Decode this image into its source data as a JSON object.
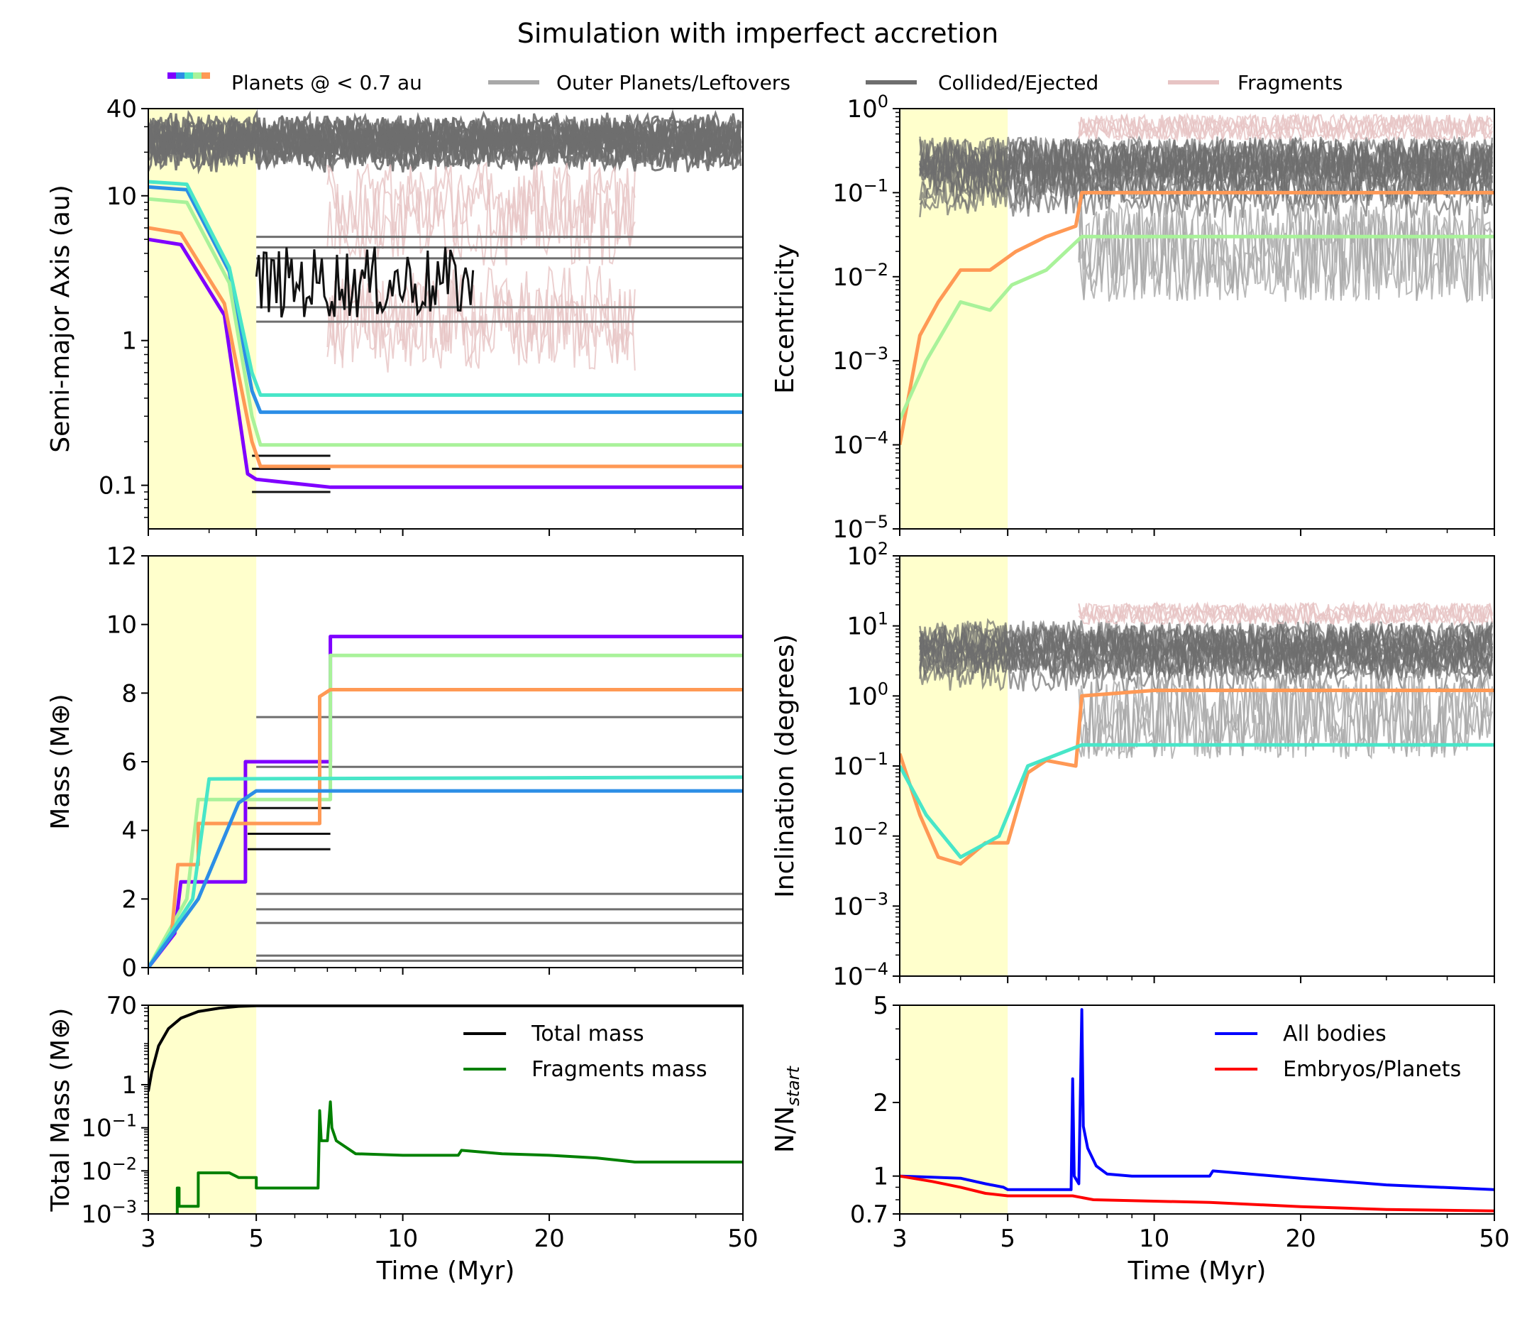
{
  "title": "Simulation with imperfect accretion",
  "colors": {
    "shade": "#ffffcc",
    "outer": "#a9a9a9",
    "collided": "#6e6e6e",
    "fragments": "#e7c4c4",
    "planet_purple": "#7f00ff",
    "planet_blue": "#2c8ee6",
    "planet_cyan": "#48e6c8",
    "planet_lightgreen": "#a9f29a",
    "planet_orange": "#ff9955",
    "total_mass": "#000000",
    "fragments_mass": "#008000",
    "all_bodies": "#0000ff",
    "embryos": "#ff0000",
    "ejected_black": "#111111"
  },
  "legend": {
    "planets": "Planets @ < 0.7 au",
    "outer": "Outer Planets/Leftovers",
    "collided": "Collided/Ejected",
    "fragments": "Fragments"
  },
  "chart_data": [
    {
      "id": "semimajor",
      "type": "line",
      "ylabel": "Semi-major Axis (au)",
      "xlabel": "",
      "xscale": "log",
      "yscale": "log",
      "xlim": [
        3,
        50
      ],
      "ylim": [
        0.05,
        40
      ],
      "shaded_x": [
        3,
        5
      ],
      "yticks": [
        {
          "v": 40,
          "label": "40"
        },
        {
          "v": 10,
          "label": "10"
        },
        {
          "v": 1,
          "label": "1"
        },
        {
          "v": 0.1,
          "label": "0.1"
        }
      ],
      "series": [
        {
          "name": "purple",
          "x": [
            3,
            3.5,
            4.3,
            4.8,
            5,
            7.1,
            50
          ],
          "values": [
            5.0,
            4.6,
            1.5,
            0.12,
            0.11,
            0.097,
            0.097
          ]
        },
        {
          "name": "blue",
          "x": [
            3,
            3.6,
            4.4,
            4.9,
            5.1,
            50
          ],
          "values": [
            11.5,
            11.0,
            3.0,
            0.45,
            0.32,
            0.32
          ]
        },
        {
          "name": "cyan",
          "x": [
            3,
            3.6,
            4.4,
            4.9,
            5.1,
            50
          ],
          "values": [
            12.5,
            12.0,
            3.2,
            0.6,
            0.42,
            0.42
          ]
        },
        {
          "name": "lightgreen",
          "x": [
            3,
            3.6,
            4.4,
            4.9,
            5.1,
            50
          ],
          "values": [
            9.5,
            9.0,
            2.5,
            0.3,
            0.19,
            0.19
          ]
        },
        {
          "name": "orange",
          "x": [
            3,
            3.5,
            4.3,
            4.9,
            5.1,
            50
          ],
          "values": [
            6.0,
            5.5,
            1.8,
            0.2,
            0.135,
            0.135
          ]
        }
      ]
    },
    {
      "id": "eccentricity",
      "type": "line",
      "ylabel": "Eccentricity",
      "xlabel": "",
      "xscale": "log",
      "yscale": "log",
      "xlim": [
        3,
        50
      ],
      "ylim": [
        1e-05,
        1
      ],
      "shaded_x": [
        3,
        5
      ],
      "yticks": [
        {
          "v": 1,
          "b": "10",
          "e": "0"
        },
        {
          "v": 0.1,
          "b": "10",
          "e": "−1"
        },
        {
          "v": 0.01,
          "b": "10",
          "e": "−2"
        },
        {
          "v": 0.001,
          "b": "10",
          "e": "−3"
        },
        {
          "v": 0.0001,
          "b": "10",
          "e": "−4"
        },
        {
          "v": 1e-05,
          "b": "10",
          "e": "−5"
        }
      ],
      "series": [
        {
          "name": "orange",
          "x": [
            3,
            3.3,
            3.6,
            4.0,
            4.6,
            5.2,
            6.0,
            6.9,
            7.1,
            10,
            20,
            50
          ],
          "values": [
            0.0001,
            0.002,
            0.005,
            0.012,
            0.012,
            0.02,
            0.03,
            0.04,
            0.1,
            0.1,
            0.1,
            0.1
          ]
        },
        {
          "name": "lightgreen",
          "x": [
            3,
            3.4,
            4.0,
            4.6,
            5.1,
            6.0,
            7.1,
            10,
            20,
            50
          ],
          "values": [
            0.0002,
            0.001,
            0.005,
            0.004,
            0.008,
            0.012,
            0.03,
            0.03,
            0.03,
            0.03
          ]
        }
      ]
    },
    {
      "id": "mass",
      "type": "line",
      "ylabel": "Mass (M⊕)",
      "xlabel": "",
      "xscale": "log",
      "yscale": "linear",
      "xlim": [
        3,
        50
      ],
      "ylim": [
        0,
        12
      ],
      "shaded_x": [
        3,
        5
      ],
      "yticks": [
        {
          "v": 0,
          "label": "0"
        },
        {
          "v": 2,
          "label": "2"
        },
        {
          "v": 4,
          "label": "4"
        },
        {
          "v": 6,
          "label": "6"
        },
        {
          "v": 8,
          "label": "8"
        },
        {
          "v": 10,
          "label": "10"
        },
        {
          "v": 12,
          "label": "12"
        }
      ],
      "series": [
        {
          "name": "purple",
          "x": [
            3,
            3.4,
            3.5,
            4.75,
            4.75,
            6.75,
            7.1,
            7.1,
            50
          ],
          "values": [
            0,
            1.0,
            2.5,
            2.5,
            6.0,
            6.0,
            6.0,
            9.65,
            9.65
          ]
        },
        {
          "name": "lightgreen",
          "x": [
            3,
            3.6,
            3.8,
            5.0,
            7.1,
            7.1,
            50
          ],
          "values": [
            0,
            2.0,
            4.9,
            4.9,
            4.9,
            9.1,
            9.1
          ]
        },
        {
          "name": "orange",
          "x": [
            3,
            3.35,
            3.45,
            3.8,
            3.8,
            6.75,
            6.75,
            7.1,
            50
          ],
          "values": [
            0,
            1.0,
            3.0,
            3.0,
            4.2,
            4.2,
            7.9,
            8.1,
            8.1
          ]
        },
        {
          "name": "cyan",
          "x": [
            3,
            3.7,
            4.0,
            50
          ],
          "values": [
            0,
            2.0,
            5.5,
            5.55
          ]
        },
        {
          "name": "blue",
          "x": [
            3,
            3.8,
            4.6,
            5.0,
            50
          ],
          "values": [
            0,
            2.0,
            4.8,
            5.15,
            5.15
          ]
        }
      ]
    },
    {
      "id": "inclination",
      "type": "line",
      "ylabel": "Inclination (degrees)",
      "xlabel": "",
      "xscale": "log",
      "yscale": "log",
      "xlim": [
        3,
        50
      ],
      "ylim": [
        0.0001,
        100
      ],
      "shaded_x": [
        3,
        5
      ],
      "yticks": [
        {
          "v": 100,
          "b": "10",
          "e": "2"
        },
        {
          "v": 10,
          "b": "10",
          "e": "1"
        },
        {
          "v": 1,
          "b": "10",
          "e": "0"
        },
        {
          "v": 0.1,
          "b": "10",
          "e": "−1"
        },
        {
          "v": 0.01,
          "b": "10",
          "e": "−2"
        },
        {
          "v": 0.001,
          "b": "10",
          "e": "−3"
        },
        {
          "v": 0.0001,
          "b": "10",
          "e": "−4"
        }
      ],
      "series": [
        {
          "name": "orange",
          "x": [
            3,
            3.3,
            3.6,
            4.0,
            4.5,
            5.0,
            5.5,
            6.0,
            6.9,
            7.1,
            10,
            20,
            50
          ],
          "values": [
            0.15,
            0.02,
            0.005,
            0.004,
            0.008,
            0.008,
            0.08,
            0.12,
            0.1,
            1.0,
            1.2,
            1.2,
            1.2
          ]
        },
        {
          "name": "cyan",
          "x": [
            3,
            3.4,
            4.0,
            4.8,
            5.5,
            7.1,
            10,
            20,
            50
          ],
          "values": [
            0.1,
            0.02,
            0.005,
            0.01,
            0.1,
            0.2,
            0.2,
            0.2,
            0.2
          ]
        }
      ]
    },
    {
      "id": "totalmass",
      "type": "line",
      "ylabel": "Total Mass (M⊕)",
      "xlabel": "Time (Myr)",
      "xscale": "log",
      "yscale": "log",
      "xlim": [
        3,
        50
      ],
      "ylim": [
        0.001,
        70
      ],
      "shaded_x": [
        3,
        5
      ],
      "xticks": [
        {
          "v": 3,
          "label": "3"
        },
        {
          "v": 5,
          "label": "5"
        },
        {
          "v": 10,
          "label": "10"
        },
        {
          "v": 20,
          "label": "20"
        },
        {
          "v": 50,
          "label": "50"
        }
      ],
      "yticks": [
        {
          "v": 70,
          "label": "70"
        },
        {
          "v": 1,
          "label": "1"
        },
        {
          "v": 0.1,
          "b": "10",
          "e": "−1"
        },
        {
          "v": 0.01,
          "b": "10",
          "e": "−2"
        },
        {
          "v": 0.001,
          "b": "10",
          "e": "−3"
        }
      ],
      "legend": [
        "Total mass",
        "Fragments mass"
      ],
      "series": [
        {
          "name": "Total mass",
          "x": [
            3,
            3.05,
            3.15,
            3.3,
            3.5,
            3.8,
            4.2,
            4.6,
            5.0,
            50
          ],
          "values": [
            0.7,
            2,
            8,
            20,
            35,
            50,
            60,
            66,
            68,
            68
          ]
        },
        {
          "name": "Fragments mass",
          "x": [
            3.44,
            3.44,
            3.47,
            3.47,
            3.8,
            3.8,
            4.4,
            4.6,
            5.0,
            5.0,
            6.7,
            6.75,
            6.8,
            7.0,
            7.1,
            7.15,
            7.3,
            8.0,
            10,
            13,
            13.2,
            16,
            20,
            25,
            30,
            50
          ],
          "values": [
            0.001,
            0.004,
            0.004,
            0.0015,
            0.0015,
            0.009,
            0.009,
            0.007,
            0.007,
            0.004,
            0.004,
            0.25,
            0.05,
            0.05,
            0.4,
            0.1,
            0.05,
            0.025,
            0.023,
            0.023,
            0.03,
            0.025,
            0.023,
            0.02,
            0.016,
            0.016
          ]
        }
      ]
    },
    {
      "id": "nbodies",
      "type": "line",
      "ylabel": "N/N_start",
      "xlabel": "Time (Myr)",
      "xscale": "log",
      "yscale": "log",
      "xlim": [
        3,
        50
      ],
      "ylim": [
        0.7,
        5
      ],
      "shaded_x": [
        3,
        5
      ],
      "xticks": [
        {
          "v": 3,
          "label": "3"
        },
        {
          "v": 5,
          "label": "5"
        },
        {
          "v": 10,
          "label": "10"
        },
        {
          "v": 20,
          "label": "20"
        },
        {
          "v": 50,
          "label": "50"
        }
      ],
      "yticks": [
        {
          "v": 5,
          "label": "5"
        },
        {
          "v": 2,
          "label": "2"
        },
        {
          "v": 1,
          "label": "1"
        },
        {
          "v": 0.7,
          "label": "0.7"
        }
      ],
      "legend": [
        "All bodies",
        "Embryos/Planets"
      ],
      "series": [
        {
          "name": "All bodies",
          "x": [
            3,
            3.5,
            4.0,
            4.5,
            4.9,
            5.0,
            6.75,
            6.8,
            6.85,
            7.0,
            7.1,
            7.15,
            7.3,
            7.6,
            8.0,
            9.0,
            13.0,
            13.2,
            20,
            30,
            50
          ],
          "values": [
            1.0,
            0.99,
            0.98,
            0.93,
            0.9,
            0.88,
            0.88,
            2.5,
            1.0,
            0.93,
            4.8,
            1.6,
            1.3,
            1.1,
            1.02,
            1.0,
            1.0,
            1.05,
            0.98,
            0.92,
            0.88
          ]
        },
        {
          "name": "Embryos/Planets",
          "x": [
            3,
            3.5,
            4.0,
            4.5,
            5.0,
            6.8,
            7.5,
            13,
            20,
            30,
            50
          ],
          "values": [
            1.0,
            0.95,
            0.9,
            0.85,
            0.83,
            0.83,
            0.8,
            0.78,
            0.75,
            0.73,
            0.72
          ]
        }
      ]
    }
  ]
}
